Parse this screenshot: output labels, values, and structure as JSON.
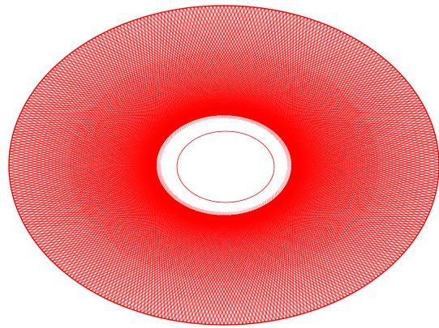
{
  "figure": {
    "kind": "string-art-torus",
    "line_color": "#ff0000",
    "background_color": "#ffffff",
    "hole_color": "#ffffff"
  }
}
